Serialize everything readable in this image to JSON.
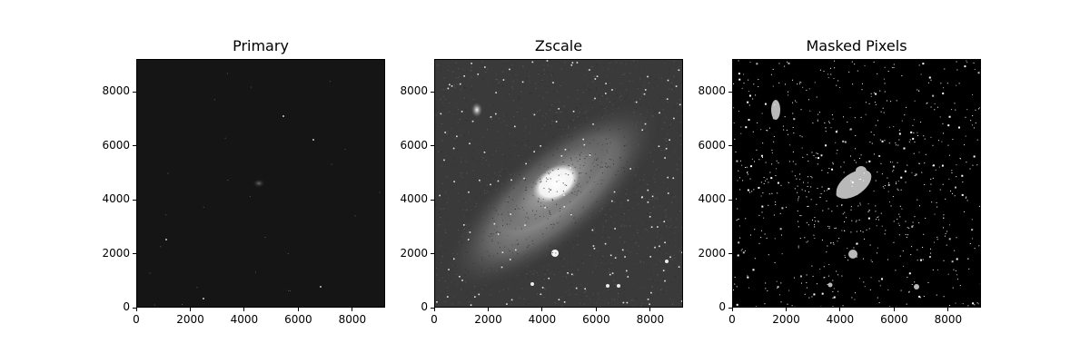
{
  "figure": {
    "panels": [
      {
        "title": "Primary",
        "xticks": [
          "0",
          "2000",
          "4000",
          "6000",
          "8000"
        ],
        "yticks": [
          "0",
          "2000",
          "4000",
          "6000",
          "8000"
        ],
        "style": "primary"
      },
      {
        "title": "Zscale",
        "xticks": [
          "0",
          "2000",
          "4000",
          "6000",
          "8000"
        ],
        "yticks": [
          "0",
          "2000",
          "4000",
          "6000",
          "8000"
        ],
        "style": "zscale"
      },
      {
        "title": "Masked Pixels",
        "xticks": [
          "0",
          "2000",
          "4000",
          "6000",
          "8000"
        ],
        "yticks": [
          "0",
          "2000",
          "4000",
          "6000",
          "8000"
        ],
        "style": "masked"
      }
    ],
    "colors": {
      "primary_bg": "#151515",
      "zscale_bg": "#3a3a3a",
      "masked_bg": "#000000",
      "masked_fg": "#b9b9b9",
      "text": "#000000"
    }
  }
}
